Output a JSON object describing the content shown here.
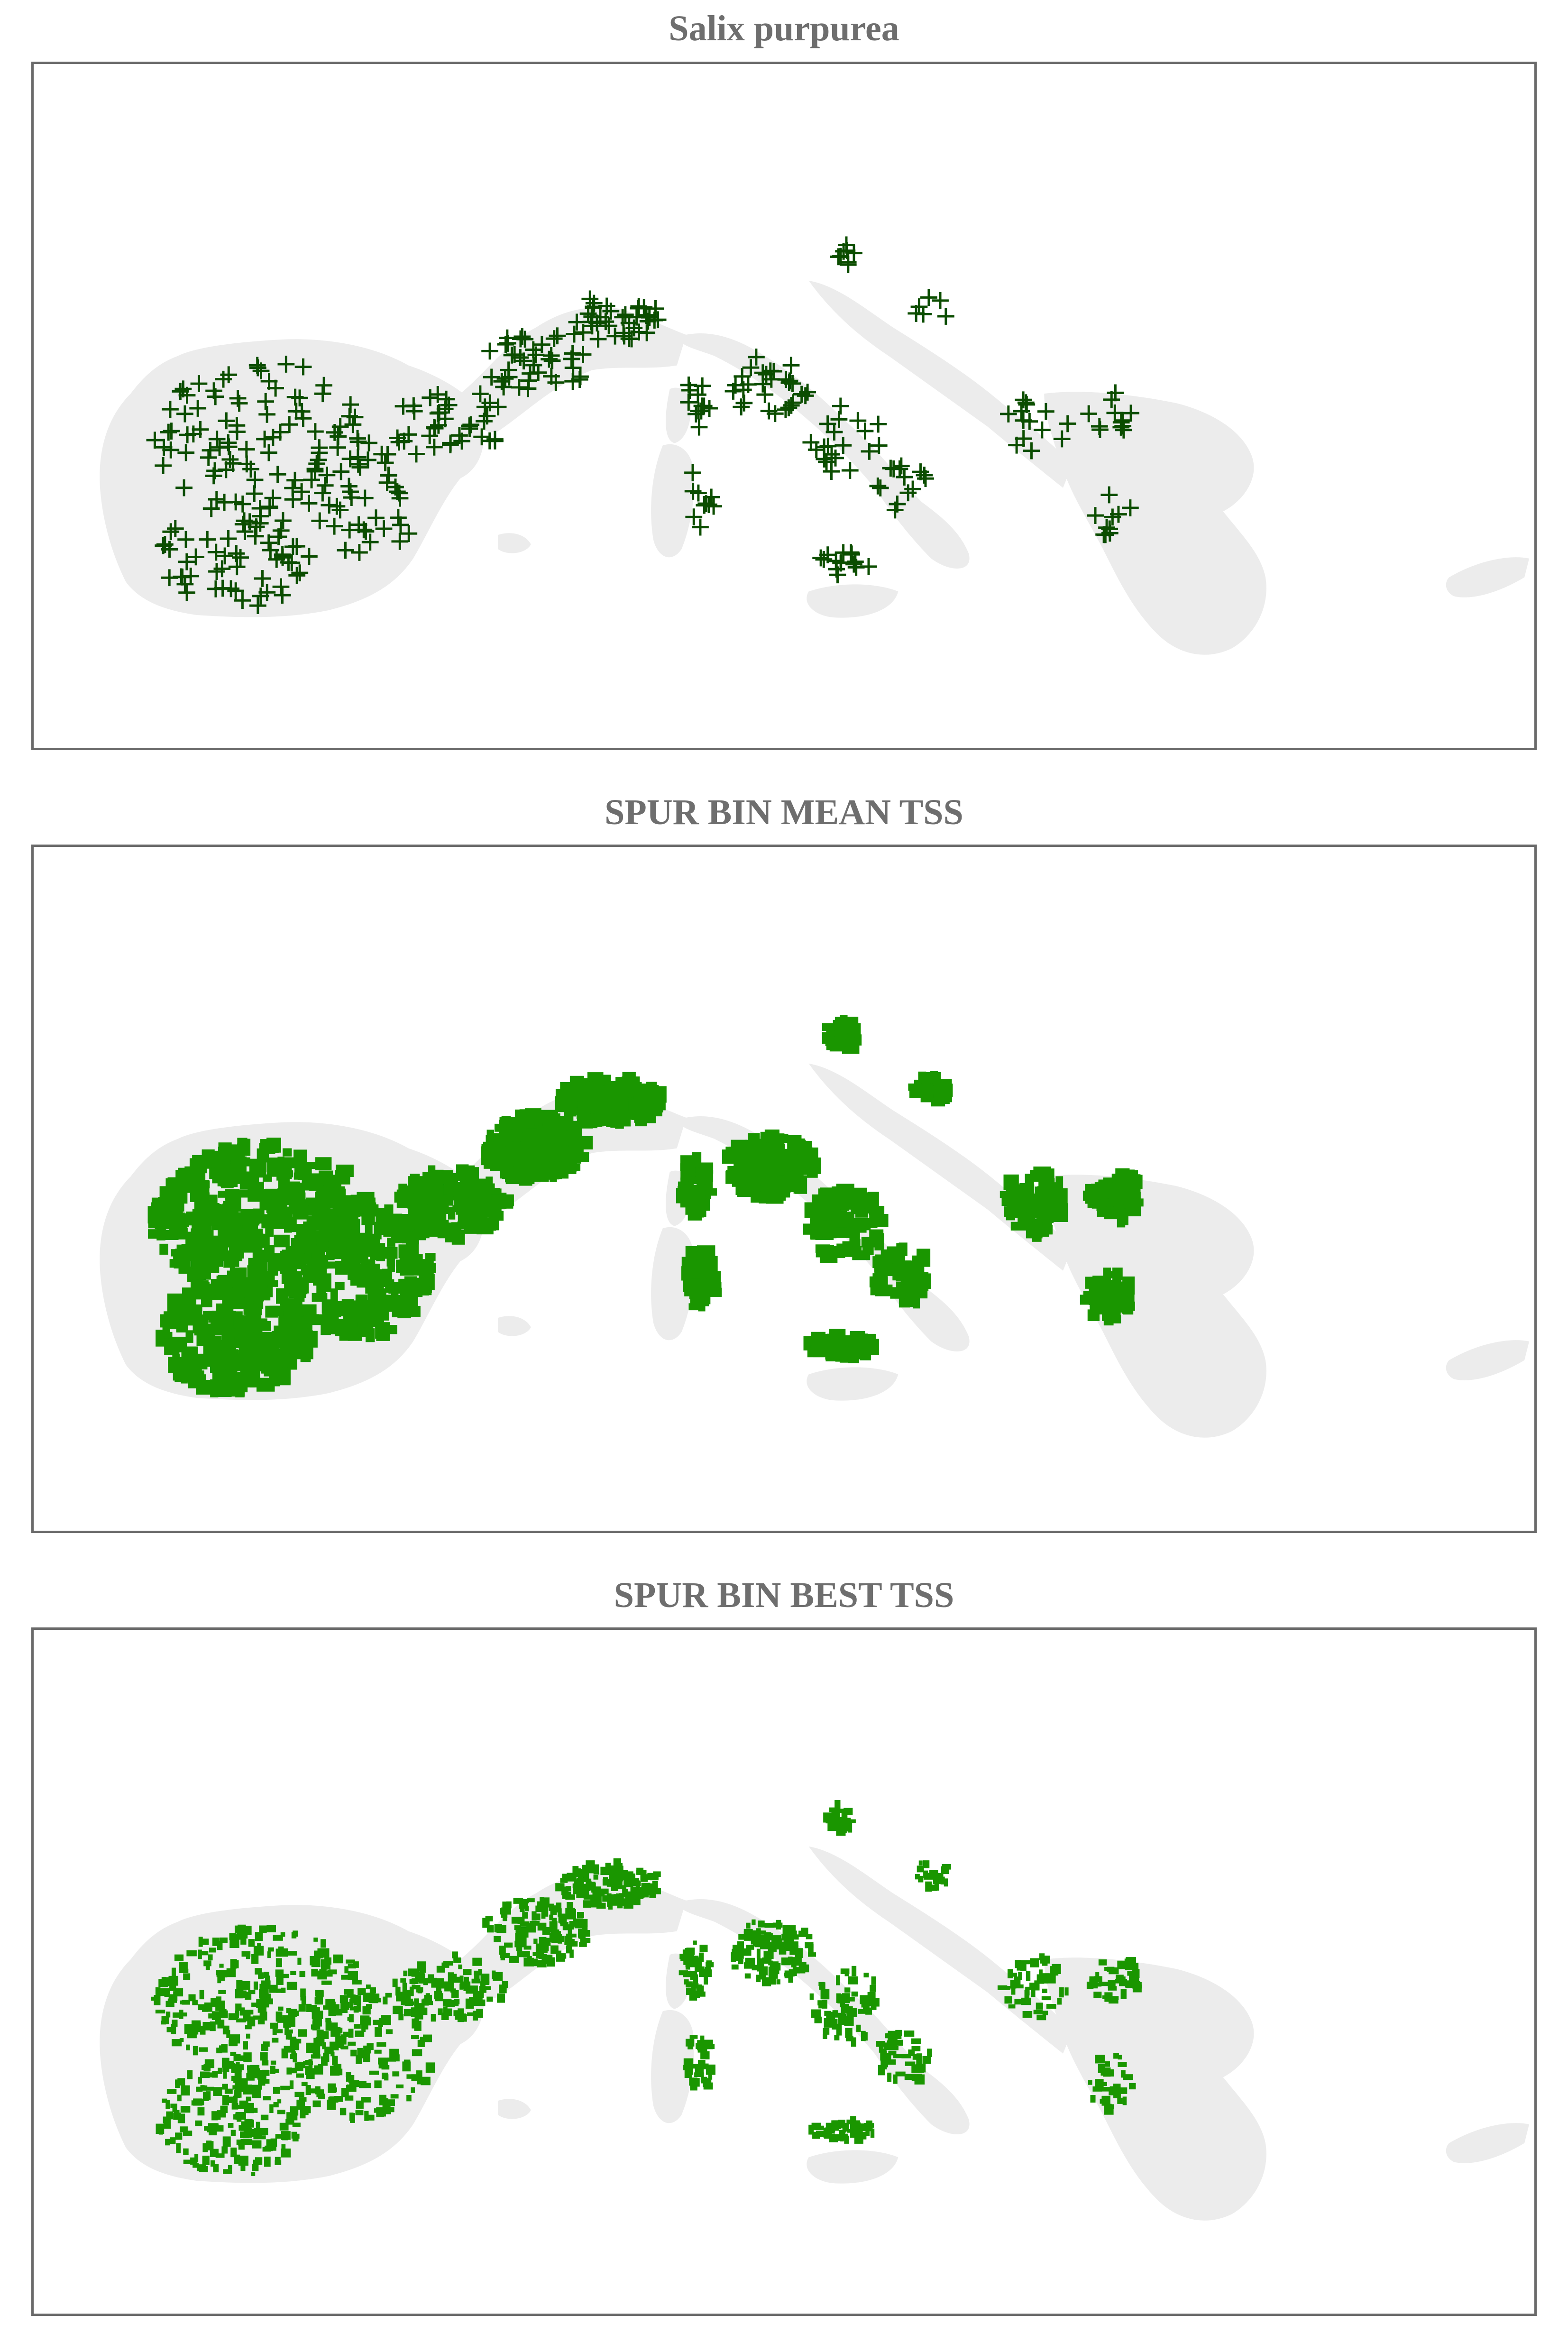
{
  "panels": [
    {
      "title": "Salix purpurea",
      "layer": "occurrence-records",
      "marker_glyph": "+",
      "marker_color": "#0b4d00"
    },
    {
      "title": "SPUR BIN MEAN TSS",
      "layer": "binary-suitability",
      "fill_color": "#1a9600"
    },
    {
      "title": "SPUR BIN BEST TSS",
      "layer": "binary-suitability",
      "fill_color": "#1a9600"
    }
  ],
  "colors": {
    "background_land": "#ececec",
    "presence_marker": "#0b4d00",
    "suitable_area": "#1a9600",
    "frame": "#6a6a6a",
    "title": "#6e6e6e"
  }
}
